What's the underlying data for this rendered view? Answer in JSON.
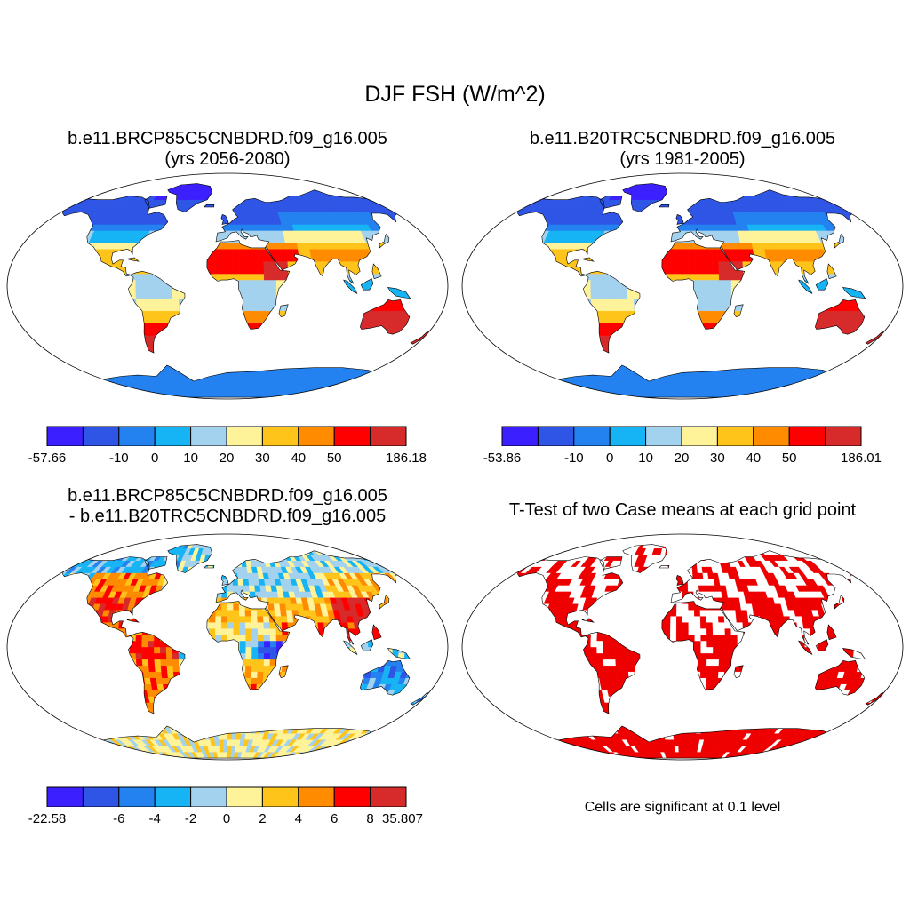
{
  "figure": {
    "title": "DJF FSH (W/m^2)",
    "note": "Cells are significant at 0.1 level"
  },
  "colors": {
    "palette": [
      "#3b1fff",
      "#2f55e6",
      "#2381f0",
      "#16b4f5",
      "#a3d2ee",
      "#fff39a",
      "#ffc41a",
      "#ff8c00",
      "#ff0000",
      "#d72a2a"
    ],
    "ocean": "#ffffff",
    "significant": "#ee0000",
    "outline": "#000000"
  },
  "panels": [
    {
      "id": "future",
      "title_lines": [
        "b.e11.BRCP85C5CNBDRD.f09_g16.005",
        "(yrs 2056-2080)"
      ],
      "colorbar_labels": [
        "-57.66",
        "-10",
        "0",
        "10",
        "20",
        "30",
        "40",
        "50",
        "186.18"
      ],
      "field": "abs"
    },
    {
      "id": "historical",
      "title_lines": [
        "b.e11.B20TRC5CNBDRD.f09_g16.005",
        "(yrs 1981-2005)"
      ],
      "colorbar_labels": [
        "-53.86",
        "-10",
        "0",
        "10",
        "20",
        "30",
        "40",
        "50",
        "186.01"
      ],
      "field": "abs"
    },
    {
      "id": "difference",
      "title_lines": [
        "b.e11.BRCP85C5CNBDRD.f09_g16.005",
        "- b.e11.B20TRC5CNBDRD.f09_g16.005"
      ],
      "colorbar_labels": [
        "-22.58",
        "-6",
        "-4",
        "-2",
        "0",
        "2",
        "4",
        "6",
        "8",
        "35.807"
      ],
      "field": "diff"
    },
    {
      "id": "ttest",
      "title_lines": [
        "T-Test of two Case means at each grid point"
      ],
      "colorbar_labels": [],
      "field": "sig"
    }
  ]
}
